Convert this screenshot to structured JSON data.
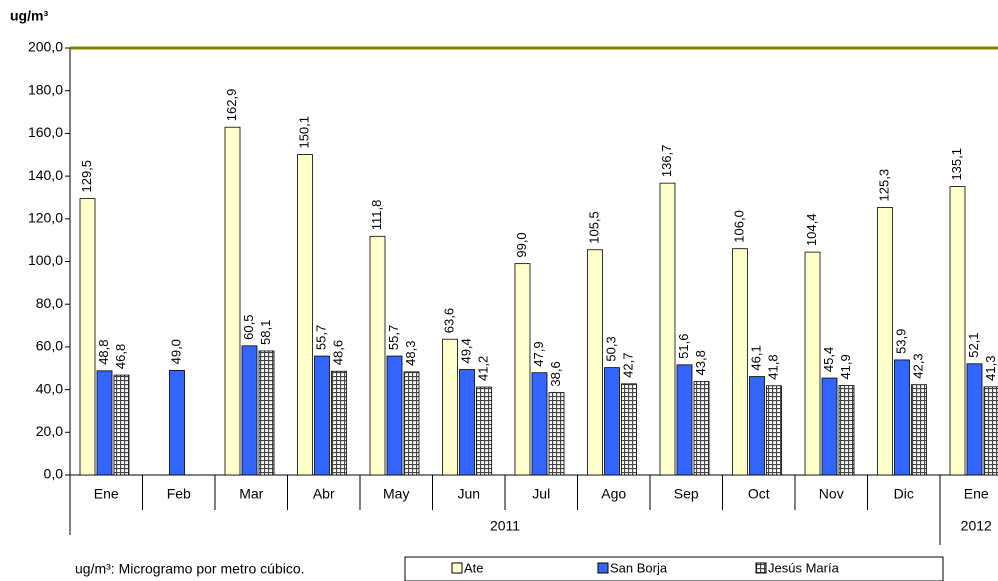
{
  "chart_data": {
    "type": "bar",
    "y_label": "ug/m³",
    "footnote": "ug/m³: Microgramo por metro cúbico.",
    "categories": [
      "Ene",
      "Feb",
      "Mar",
      "Abr",
      "May",
      "Jun",
      "Jul",
      "Ago",
      "Sep",
      "Oct",
      "Nov",
      "Dic",
      "Ene"
    ],
    "category_groups": [
      "2011",
      "2011",
      "2011",
      "2011",
      "2011",
      "2011",
      "2011",
      "2011",
      "2011",
      "2011",
      "2011",
      "2011",
      "2012"
    ],
    "series": [
      {
        "name": "Ate",
        "color": "#ffffcc",
        "values": [
          129.5,
          null,
          162.9,
          150.1,
          111.8,
          63.6,
          99.0,
          105.5,
          136.7,
          106.0,
          104.4,
          125.3,
          135.1
        ],
        "value_labels": [
          "129,5",
          null,
          "162,9",
          "150,1",
          "111,8",
          "63,6",
          "99,0",
          "105,5",
          "136,7",
          "106,0",
          "104,4",
          "125,3",
          "135,1"
        ]
      },
      {
        "name": "San Borja",
        "color": "#3366ff",
        "values": [
          48.8,
          49.0,
          60.5,
          55.7,
          55.7,
          49.4,
          47.9,
          50.3,
          51.6,
          46.1,
          45.4,
          53.9,
          52.1
        ],
        "value_labels": [
          "48,8",
          "49,0",
          "60,5",
          "55,7",
          "55,7",
          "49,4",
          "47,9",
          "50,3",
          "51,6",
          "46,1",
          "45,4",
          "53,9",
          "52,1"
        ]
      },
      {
        "name": "Jesús María",
        "color": "#444444",
        "pattern": "grid",
        "values": [
          46.8,
          null,
          58.1,
          48.6,
          48.3,
          41.2,
          38.6,
          42.7,
          43.8,
          41.8,
          41.9,
          42.3,
          41.3
        ],
        "value_labels": [
          "46,8",
          null,
          "58,1",
          "48,6",
          "48,3",
          "41,2",
          "38,6",
          "42,7",
          "43,8",
          "41,8",
          "41,9",
          "42,3",
          "41,3"
        ]
      }
    ],
    "ylim": [
      0,
      200
    ],
    "yticks": [
      {
        "value": 0,
        "label": "0,0"
      },
      {
        "value": 20,
        "label": "20,0"
      },
      {
        "value": 40,
        "label": "40,0"
      },
      {
        "value": 60,
        "label": "60,0"
      },
      {
        "value": 80,
        "label": "80,0"
      },
      {
        "value": 100,
        "label": "100,0"
      },
      {
        "value": 120,
        "label": "120,0"
      },
      {
        "value": 140,
        "label": "140,0"
      },
      {
        "value": 160,
        "label": "160,0"
      },
      {
        "value": 180,
        "label": "180,0"
      },
      {
        "value": 200,
        "label": "200,0"
      }
    ],
    "grid": false,
    "legend": "bottom"
  }
}
